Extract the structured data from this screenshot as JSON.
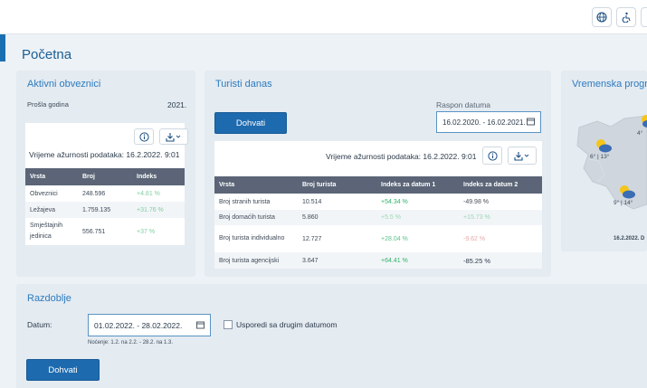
{
  "page_title": "Početna",
  "cards": {
    "aktivni": {
      "title": "Aktivni obveznici",
      "prev_year_label": "Prošla godina",
      "year": "2021.",
      "updated": "Vrijeme ažurnosti podataka: 16.2.2022. 9:01",
      "columns": [
        "Vrsta",
        "Broj",
        "Indeks"
      ],
      "rows": [
        {
          "vrsta": "Obveznici",
          "broj": "248.596",
          "indeks": "+4.81 %"
        },
        {
          "vrsta": "Ležajeva",
          "broj": "1.759.135",
          "indeks": "+31.76 %"
        },
        {
          "vrsta": "Smještajnih jedinica",
          "broj": "556.751",
          "indeks": "+37 %"
        }
      ]
    },
    "turisti": {
      "title": "Turisti danas",
      "button": "Dohvati",
      "range_label": "Raspon datuma",
      "range_value": "16.02.2020. - 16.02.2021.",
      "updated": "Vrijeme ažurnosti podataka: 16.2.2022. 9:01",
      "columns": [
        "Vrsta",
        "Broj turista",
        "Indeks za datum 1",
        "Indeks za datum 2"
      ],
      "rows": [
        {
          "vrsta": "Broj stranih turista",
          "broj": "10.514",
          "i1": "+54.34 %",
          "i2": "-49.98 %"
        },
        {
          "vrsta": "Broj domaćih turista",
          "broj": "5.860",
          "i1": "+5.5 %",
          "i2": "+15.73 %"
        },
        {
          "vrsta": "Broj turista individualno",
          "broj": "12.727",
          "i1": "+28.04 %",
          "i2": "-9.62 %"
        },
        {
          "vrsta": "Broj turista agencijski",
          "broj": "3.647",
          "i1": "+64.41 %",
          "i2": "-85.25 %"
        }
      ]
    },
    "weather": {
      "title": "Vremenska prognoz",
      "temp1": "6° | 13°",
      "temp2": "9° | 14°",
      "temp3": "4°",
      "date": "16.2.2022. D"
    },
    "razdoblje": {
      "title": "Razdoblje",
      "date_label": "Datum:",
      "date_value": "01.02.2022. - 28.02.2022.",
      "compare_label": "Usporedi sa drugim datumom",
      "nights": "Noćenje: 1.2. na 2.2. - 28.2. na 1.3.",
      "button": "Dohvati"
    }
  },
  "topbar": {
    "globe_icon": "globe-icon",
    "accessibility_icon": "accessibility-icon"
  }
}
